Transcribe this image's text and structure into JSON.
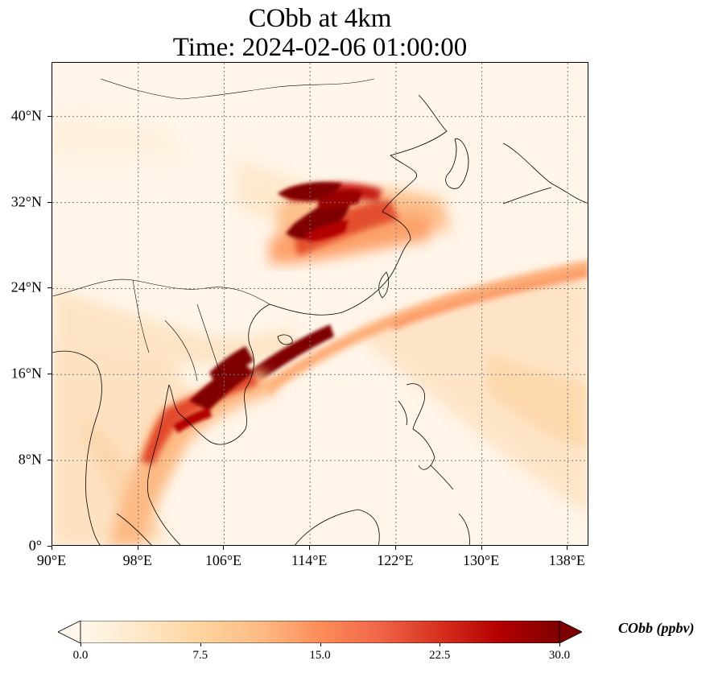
{
  "title": {
    "line1": "CObb at 4km",
    "line2": "Time: 2024-02-06 01:00:00"
  },
  "map": {
    "lon_range": [
      90,
      140
    ],
    "lat_range": [
      0,
      45
    ],
    "gridlines": true,
    "lon_ticks": [
      {
        "value": 90,
        "label": "90°E"
      },
      {
        "value": 98,
        "label": "98°E"
      },
      {
        "value": 106,
        "label": "106°E"
      },
      {
        "value": 114,
        "label": "114°E"
      },
      {
        "value": 122,
        "label": "122°E"
      },
      {
        "value": 130,
        "label": "130°E"
      },
      {
        "value": 138,
        "label": "138°E"
      }
    ],
    "lat_ticks": [
      {
        "value": 0,
        "label": "0°"
      },
      {
        "value": 8,
        "label": "8°N"
      },
      {
        "value": 16,
        "label": "16°N"
      },
      {
        "value": 24,
        "label": "24°N"
      },
      {
        "value": 32,
        "label": "32°N"
      },
      {
        "value": 40,
        "label": "40°N"
      }
    ]
  },
  "colorbar": {
    "label": "CObb (ppbv)",
    "min": 0.0,
    "max": 30.0,
    "colormap": "OrRd",
    "extend": "both",
    "ticks": [
      {
        "value": 0.0,
        "label": "0.0"
      },
      {
        "value": 7.5,
        "label": "7.5"
      },
      {
        "value": 15.0,
        "label": "15.0"
      },
      {
        "value": 22.5,
        "label": "22.5"
      },
      {
        "value": 30.0,
        "label": "30.0"
      }
    ],
    "colors": [
      "#fff7ec",
      "#fee8c8",
      "#fdd49e",
      "#fdbb84",
      "#fc8d59",
      "#ef6548",
      "#d7301f",
      "#b30000",
      "#7f0000"
    ]
  }
}
